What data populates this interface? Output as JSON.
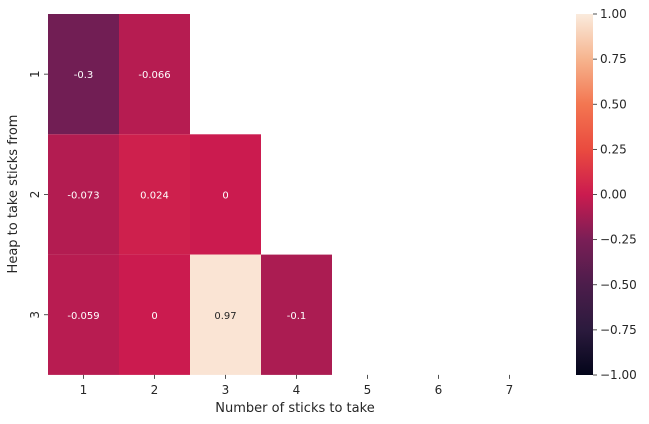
{
  "chart_data": {
    "type": "heatmap",
    "title": "",
    "xlabel": "Number of sticks to take",
    "ylabel": "Heap to take sticks from",
    "x_categories": [
      "1",
      "2",
      "3",
      "4",
      "5",
      "6",
      "7"
    ],
    "y_categories": [
      "1",
      "2",
      "3"
    ],
    "cells": [
      {
        "row": 0,
        "col": 0,
        "value": -0.3,
        "label": "-0.3"
      },
      {
        "row": 0,
        "col": 1,
        "value": -0.066,
        "label": "-0.066"
      },
      {
        "row": 1,
        "col": 0,
        "value": -0.073,
        "label": "-0.073"
      },
      {
        "row": 1,
        "col": 1,
        "value": 0.024,
        "label": "0.024"
      },
      {
        "row": 1,
        "col": 2,
        "value": 0,
        "label": "0"
      },
      {
        "row": 2,
        "col": 0,
        "value": -0.059,
        "label": "-0.059"
      },
      {
        "row": 2,
        "col": 1,
        "value": 0,
        "label": "0"
      },
      {
        "row": 2,
        "col": 2,
        "value": 0.97,
        "label": "0.97"
      },
      {
        "row": 2,
        "col": 3,
        "value": -0.1,
        "label": "-0.1"
      }
    ],
    "colorbar": {
      "vmin": -1.0,
      "vmax": 1.0,
      "ticks": [
        "1.00",
        "0.75",
        "0.50",
        "0.25",
        "0.00",
        "−0.25",
        "−0.50",
        "−0.75",
        "−1.00"
      ],
      "tick_values": [
        1.0,
        0.75,
        0.5,
        0.25,
        0.0,
        -0.25,
        -0.5,
        -0.75,
        -1.0
      ],
      "colormap": "rocket"
    },
    "grid": false,
    "legend": "colorbar-right"
  }
}
